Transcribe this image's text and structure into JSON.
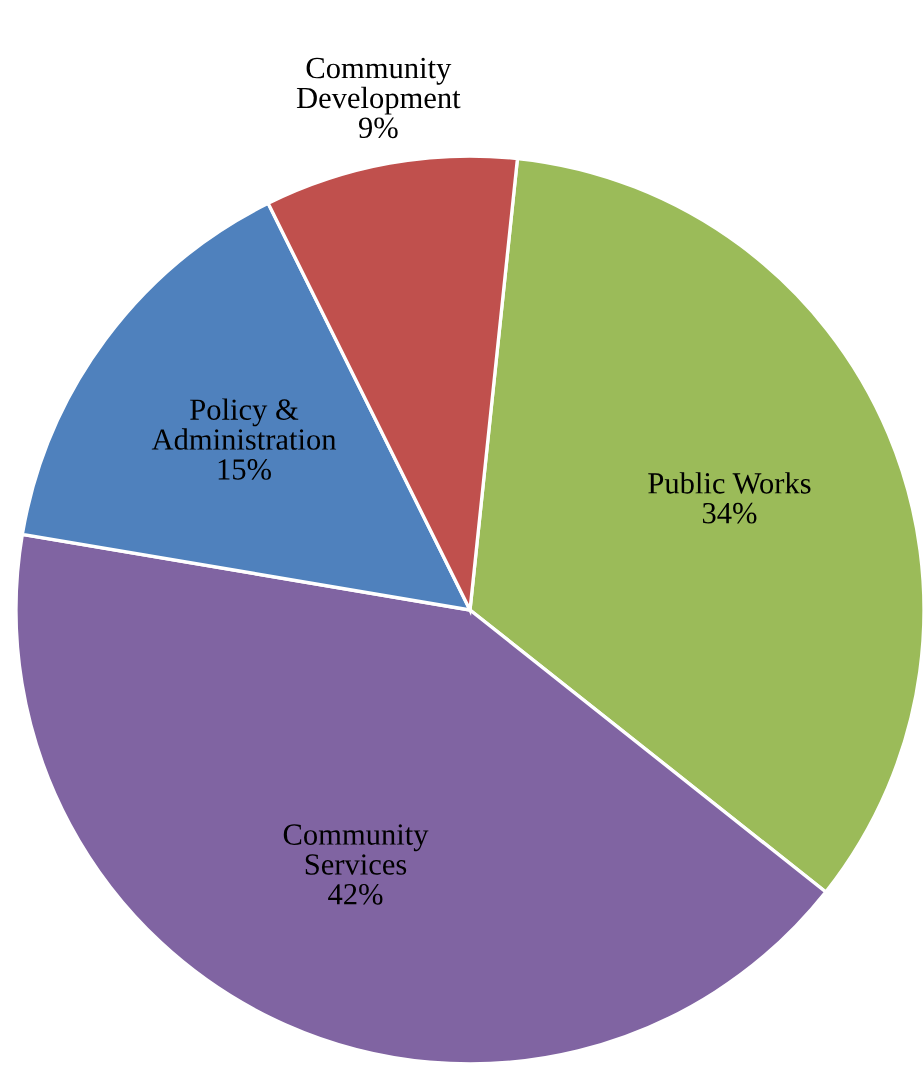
{
  "chart_data": {
    "type": "pie",
    "categories": [
      "Public Works",
      "Community\nServices",
      "Policy &\nAdministration",
      "Community\nDevelopment"
    ],
    "values": [
      34,
      42,
      15,
      9
    ],
    "colors": [
      "#9bbb59",
      "#8064a2",
      "#4f81bd",
      "#c0504d"
    ],
    "value_labels": [
      "34%",
      "42%",
      "15%",
      "9%"
    ],
    "legend": false
  }
}
